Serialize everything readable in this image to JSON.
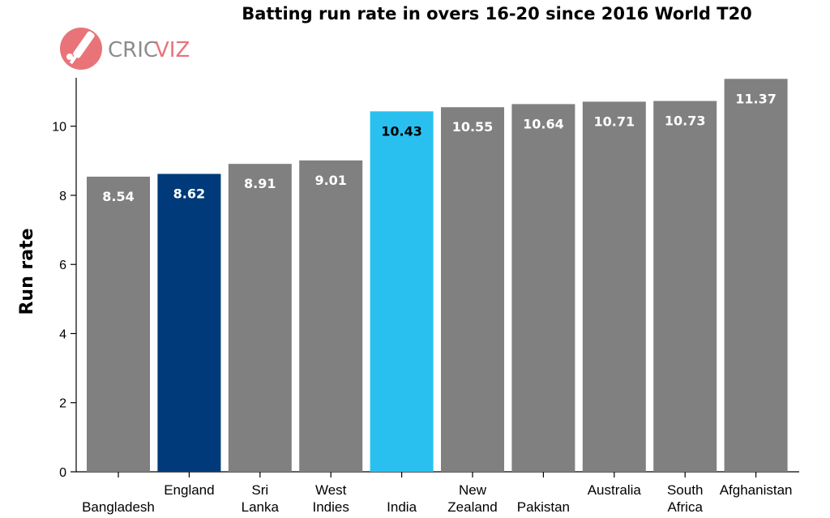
{
  "logo": {
    "text_a": "CRIC",
    "text_b": "VIZ",
    "icon": "cricket-bat-ball-icon",
    "accent": "#e8747a",
    "text_color": "#8c8c8c"
  },
  "chart_data": {
    "type": "bar",
    "title": "Batting run rate in overs 16-20 since 2016 World T20",
    "xlabel": "",
    "ylabel": "Run rate",
    "ylim": [
      0,
      11.4
    ],
    "yticks": [
      0,
      2,
      4,
      6,
      8,
      10
    ],
    "grid": false,
    "legend": "none",
    "categories": [
      [
        "Bangladesh"
      ],
      [
        "England"
      ],
      [
        "Sri",
        "Lanka"
      ],
      [
        "West",
        "Indies"
      ],
      [
        "India"
      ],
      [
        "New",
        "Zealand"
      ],
      [
        "Pakistan"
      ],
      [
        "Australia"
      ],
      [
        "South",
        "Africa"
      ],
      [
        "Afghanistan"
      ]
    ],
    "values": [
      8.54,
      8.62,
      8.91,
      9.01,
      10.43,
      10.55,
      10.64,
      10.71,
      10.73,
      11.37
    ],
    "value_labels": [
      "8.54",
      "8.62",
      "8.91",
      "9.01",
      "10.43",
      "10.55",
      "10.64",
      "10.71",
      "10.73",
      "11.37"
    ],
    "colors": [
      "#808080",
      "#003a7a",
      "#808080",
      "#808080",
      "#29c0f0",
      "#808080",
      "#808080",
      "#808080",
      "#808080",
      "#808080"
    ],
    "label_colors": [
      "#ffffff",
      "#ffffff",
      "#ffffff",
      "#ffffff",
      "#000000",
      "#ffffff",
      "#ffffff",
      "#ffffff",
      "#ffffff",
      "#ffffff"
    ]
  }
}
